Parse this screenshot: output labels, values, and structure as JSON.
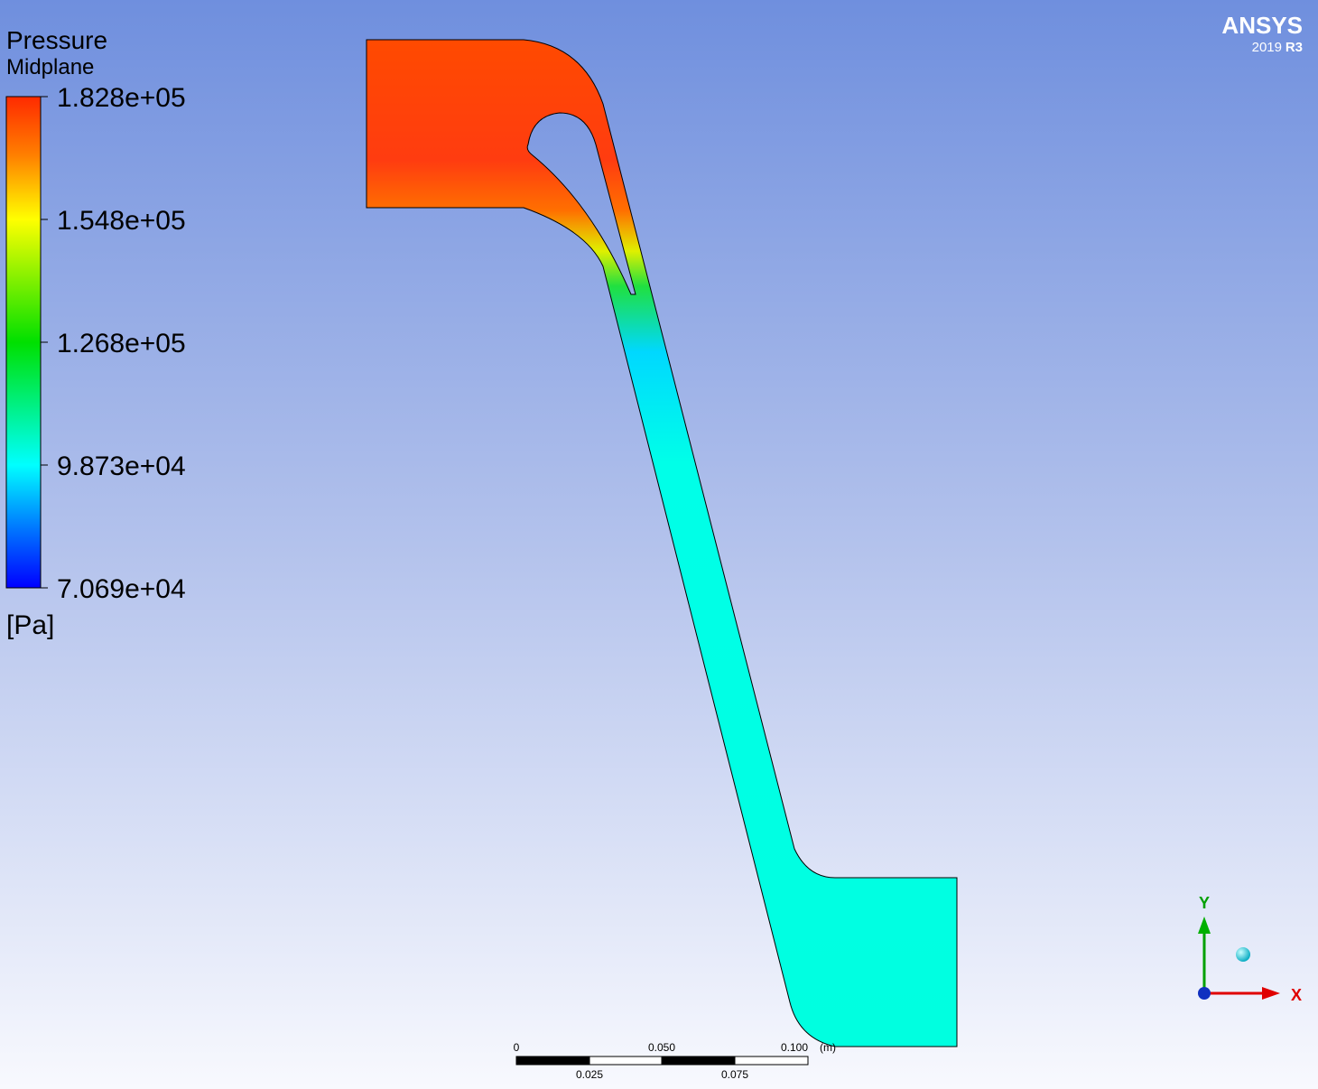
{
  "legend": {
    "title": "Pressure",
    "subtitle": "Midplane",
    "labels": [
      "1.828e+05",
      "1.548e+05",
      "1.268e+05",
      "9.873e+04",
      "7.069e+04"
    ],
    "unit": "[Pa]"
  },
  "logo": {
    "brand": "ANSYS",
    "version": "2019",
    "release": "R3"
  },
  "scale_bar": {
    "top_labels": [
      "0",
      "0.050",
      "0.100"
    ],
    "unit": "(m)",
    "bottom_labels": [
      "0.025",
      "0.075"
    ]
  },
  "triad": {
    "y": "Y",
    "x": "X"
  }
}
